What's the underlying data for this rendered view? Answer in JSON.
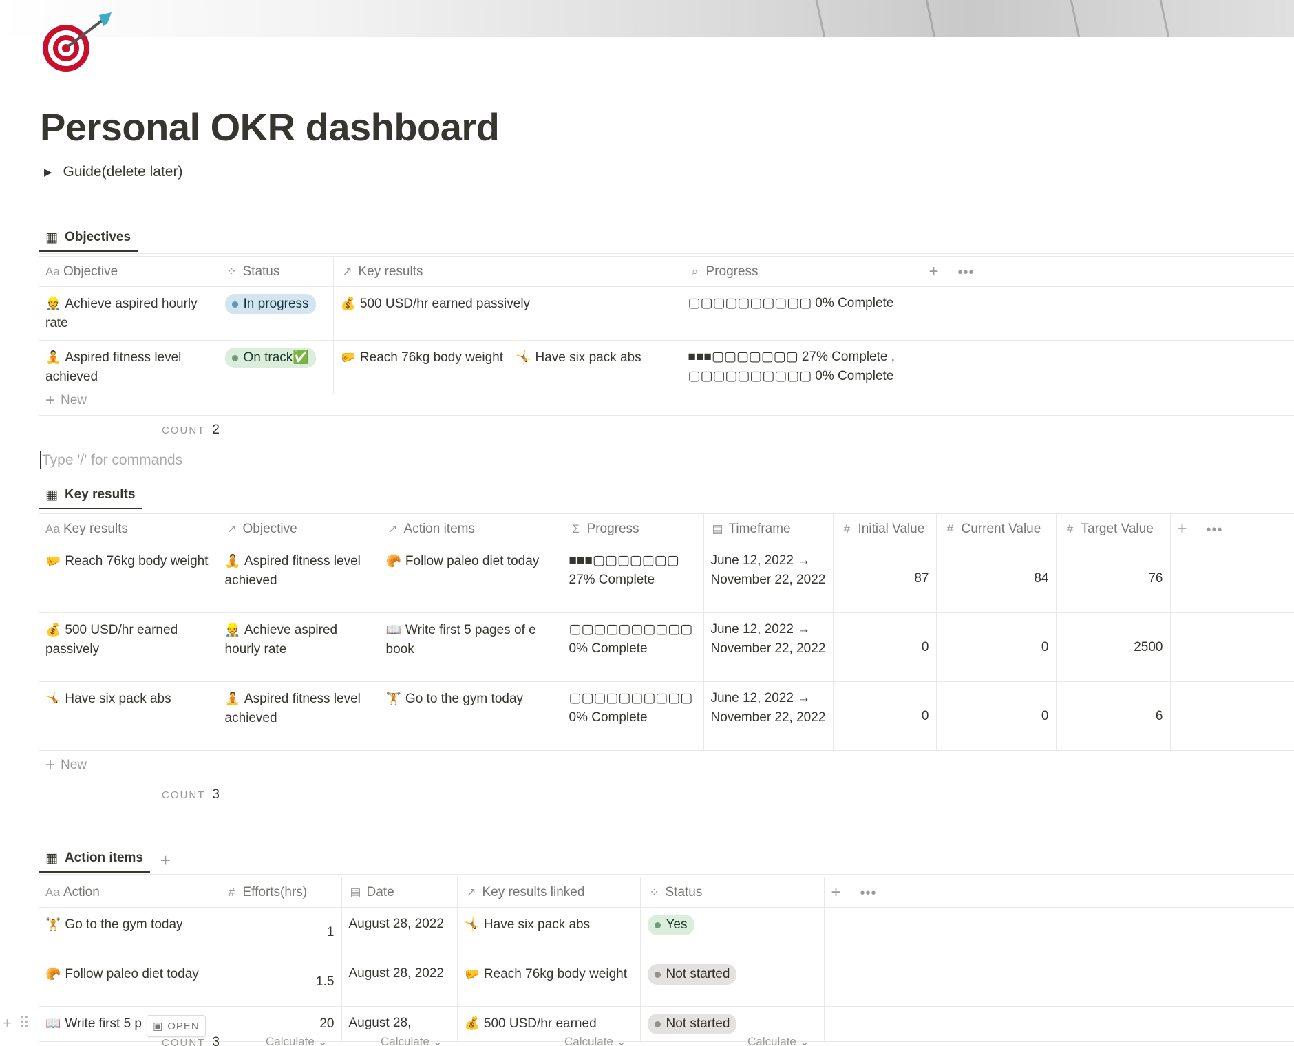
{
  "page": {
    "title": "Personal OKR dashboard",
    "page_icon": "dart-target-icon",
    "guide_toggle": "Guide(delete later)",
    "placeholder": "Type '/' for commands"
  },
  "objectives": {
    "view_label": "Objectives",
    "columns": [
      "Objective",
      "Status",
      "Key results",
      "Progress"
    ],
    "rows": [
      {
        "emoji": "👷",
        "objective": "Achieve aspired hourly rate",
        "status": "In progress",
        "status_color": "#d3e5ef",
        "key_results": [
          {
            "emoji": "💰",
            "label": "500 USD/hr earned passively"
          }
        ],
        "progress_1": "▢▢▢▢▢▢▢▢▢▢ 0% Complete",
        "progress_2": ""
      },
      {
        "emoji": "🧘",
        "objective": "Aspired fitness level achieved",
        "status": "On track✅",
        "status_color": "#dbeddb",
        "key_results": [
          {
            "emoji": "🤛",
            "label": "Reach 76kg body weight"
          },
          {
            "emoji": "🤸",
            "label": "Have six pack abs"
          }
        ],
        "progress_1": "■■■▢▢▢▢▢▢▢ 27% Complete ,",
        "progress_2": "▢▢▢▢▢▢▢▢▢▢ 0% Complete"
      }
    ],
    "new_label": "New",
    "count_label": "COUNT",
    "count_value": "2"
  },
  "key_results": {
    "view_label": "Key results",
    "columns": [
      "Key results",
      "Objective",
      "Action items",
      "Progress",
      "Timeframe",
      "Initial Value",
      "Current Value",
      "Target Value"
    ],
    "rows": [
      {
        "emoji": "🤛",
        "name": "Reach 76kg body weight",
        "obj_emoji": "🧘",
        "objective": "Aspired fitness level achieved",
        "act_emoji": "🥐",
        "action": "Follow paleo diet today",
        "bar": "■■■▢▢▢▢▢▢▢",
        "pct": "27% Complete",
        "timeframe": "June 12, 2022 → November 22, 2022",
        "initial": "87",
        "current": "84",
        "target": "76"
      },
      {
        "emoji": "💰",
        "name": "500 USD/hr earned passively",
        "obj_emoji": "👷",
        "objective": "Achieve aspired hourly rate",
        "act_emoji": "📖",
        "action": "Write first 5 pages of e book",
        "bar": "▢▢▢▢▢▢▢▢▢▢",
        "pct": "0% Complete",
        "timeframe": "June 12, 2022 → November 22, 2022",
        "initial": "0",
        "current": "0",
        "target": "2500"
      },
      {
        "emoji": "🤸",
        "name": "Have six pack abs",
        "obj_emoji": "🧘",
        "objective": "Aspired fitness level achieved",
        "act_emoji": "🏋",
        "action": "Go to the gym today",
        "bar": "▢▢▢▢▢▢▢▢▢▢",
        "pct": "0% Complete",
        "timeframe": "June 12, 2022 → November 22, 2022",
        "initial": "0",
        "current": "0",
        "target": "6"
      }
    ],
    "new_label": "New",
    "count_label": "COUNT",
    "count_value": "3"
  },
  "action_items": {
    "view_label": "Action items",
    "columns": [
      "Action",
      "Efforts(hrs)",
      "Date",
      "Key results linked",
      "Status"
    ],
    "rows": [
      {
        "emoji": "🏋",
        "action": "Go to the gym today",
        "efforts": "1",
        "date": "August 28, 2022",
        "kr_emoji": "🤸",
        "kr": "Have six pack abs",
        "status": "Yes",
        "status_color": "#dbeddb"
      },
      {
        "emoji": "🥐",
        "action": "Follow paleo diet today",
        "efforts": "1.5",
        "date": "August 28, 2022",
        "kr_emoji": "🤛",
        "kr": "Reach 76kg body weight",
        "status": "Not started",
        "status_color": "#e3e2e0"
      },
      {
        "emoji": "📖",
        "action": "Write first 5 p",
        "efforts": "20",
        "date": "August 28,",
        "kr_emoji": "💰",
        "kr": "500 USD/hr earned",
        "status": "Not started",
        "status_color": "#e3e2e0"
      }
    ],
    "open_label": "OPEN",
    "count_label": "COUNT",
    "count_value": "3",
    "calculate_label": "Calculate ⌄"
  }
}
